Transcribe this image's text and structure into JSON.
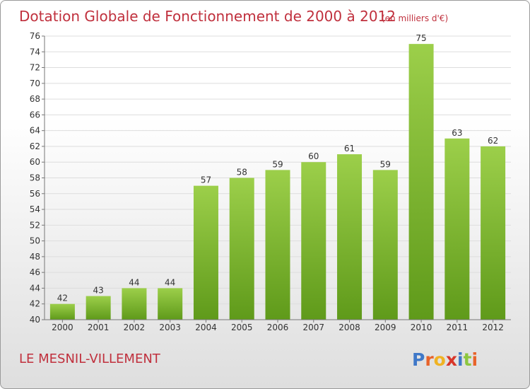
{
  "header": {
    "title": "Dotation Globale de Fonctionnement de 2000 à 2012",
    "subtitle": "(en milliers d'€)"
  },
  "footer": {
    "commune": "LE MESNIL-VILLEMENT",
    "logo_letters": [
      "P",
      "r",
      "o",
      "x",
      "i",
      "t",
      "i"
    ],
    "logo_colors": [
      "#3f78c8",
      "#e8632a",
      "#f0b323",
      "#d8362a",
      "#3f78c8",
      "#8cc63f",
      "#e8632a"
    ]
  },
  "colors": {
    "bar_top": "#9ccf4a",
    "bar_bottom": "#5f9a1a",
    "grid": "#dddddd",
    "axis": "#777777",
    "title": "#c0303d"
  },
  "chart_data": {
    "type": "bar",
    "categories": [
      "2000",
      "2001",
      "2002",
      "2003",
      "2004",
      "2005",
      "2006",
      "2007",
      "2008",
      "2009",
      "2010",
      "2011",
      "2012"
    ],
    "values": [
      42,
      43,
      44,
      44,
      57,
      58,
      59,
      60,
      61,
      59,
      75,
      63,
      62
    ],
    "title": "Dotation Globale de Fonctionnement de 2000 à 2012",
    "subtitle": "(en milliers d'€)",
    "ylim": [
      40,
      76
    ],
    "yticks": [
      40,
      42,
      44,
      46,
      48,
      50,
      52,
      54,
      56,
      58,
      60,
      62,
      64,
      66,
      68,
      70,
      72,
      74,
      76
    ],
    "grid": true,
    "data_labels": true,
    "legend": "none"
  }
}
